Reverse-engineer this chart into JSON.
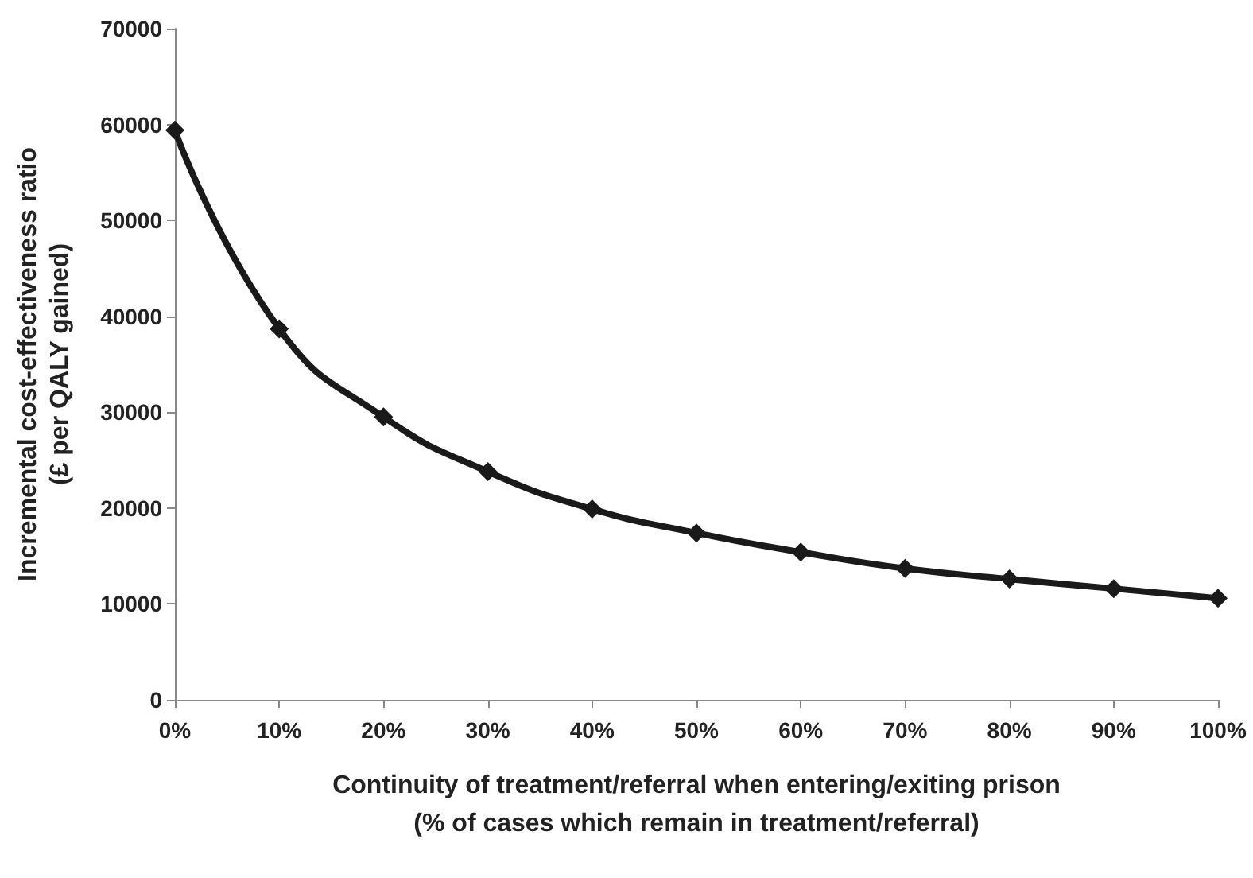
{
  "chart_data": {
    "type": "line",
    "xlabel": "Continuity of treatment/referral when entering/exiting prison\n(% of cases which remain in treatment/referral)",
    "ylabel": "Incremental cost-effectiveness ratio\n(£ per QALY gained)",
    "categories": [
      "0%",
      "10%",
      "20%",
      "30%",
      "40%",
      "50%",
      "60%",
      "70%",
      "80%",
      "90%",
      "100%"
    ],
    "series": [
      {
        "color": "#1a1a1a",
        "values": [
          59400,
          38700,
          29500,
          23800,
          19900,
          17400,
          15400,
          13700,
          12600,
          11600,
          10600
        ]
      }
    ],
    "ylim": [
      0,
      70000
    ],
    "yticks": [
      0,
      10000,
      20000,
      30000,
      40000,
      50000,
      60000,
      70000
    ],
    "grid": false,
    "marker": "diamond",
    "line_style": "solid"
  }
}
